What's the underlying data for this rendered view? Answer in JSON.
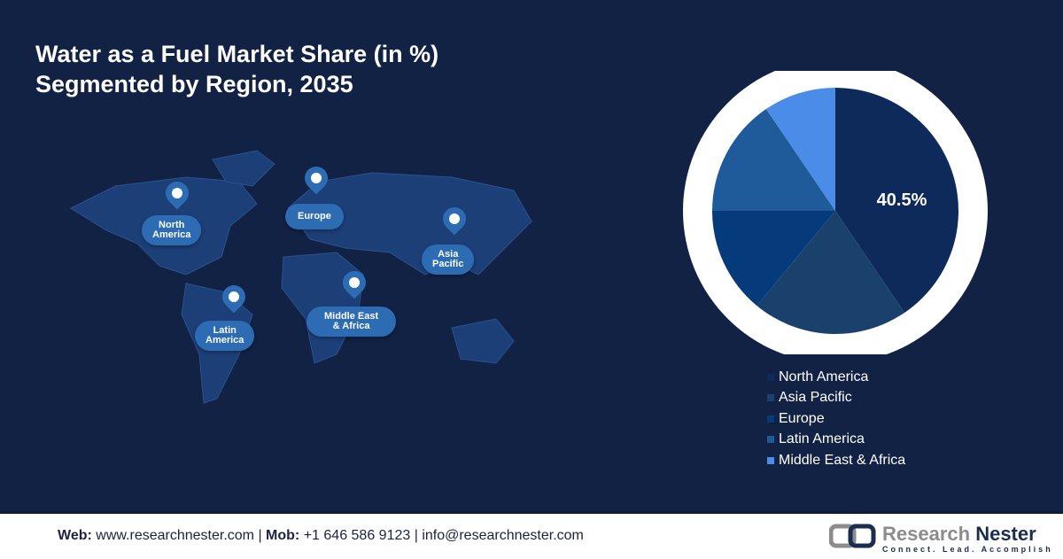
{
  "title": {
    "line1": "Water as a Fuel Market Share (in %)",
    "line2": "Segmented by Region, 2035"
  },
  "map_labels": [
    {
      "label_l1": "North",
      "label_l2": "America"
    },
    {
      "label_l1": "Europe",
      "label_l2": ""
    },
    {
      "label_l1": "Asia",
      "label_l2": "Pacific"
    },
    {
      "label_l1": "Latin",
      "label_l2": "America"
    },
    {
      "label_l1": "Middle East",
      "label_l2": "& Africa"
    }
  ],
  "chart_data": {
    "type": "pie",
    "categories": [
      "North America",
      "Asia Pacific",
      "Europe",
      "Latin America",
      "Middle East & Africa"
    ],
    "values": [
      40.5,
      20.5,
      14,
      15.5,
      9.5
    ],
    "colors": [
      "#0d2a5a",
      "#1a406c",
      "#053b7a",
      "#1f5b9b",
      "#4a8ce8"
    ],
    "data_labels": [
      "40.5%"
    ],
    "legend_position": "bottom-right"
  },
  "footer": {
    "web_label": "Web:",
    "web": "www.researchnester.com",
    "mob_label": "Mob:",
    "mob": "+1 646 586 9123",
    "email": "info@researchnester.com",
    "logo_text1": "Research",
    "logo_text2": "Nester",
    "tagline": "Connect. Lead. Accomplish"
  }
}
